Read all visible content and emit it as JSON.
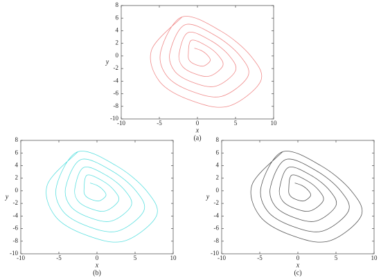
{
  "chart_data": [
    {
      "type": "line",
      "xlabel": "x",
      "ylabel": "y",
      "caption": "(a)",
      "xlim": [
        -10,
        10
      ],
      "xticks": [
        -10,
        -5,
        0,
        5,
        10
      ],
      "ylim": [
        -10,
        8
      ],
      "yticks": [
        -10,
        -8,
        -6,
        -4,
        -2,
        0,
        2,
        4,
        6,
        8
      ],
      "series": [
        {
          "color": "#f08a8a",
          "x": [
            -0.4,
            0.6,
            1.4,
            1.66,
            0.8,
            -0.2,
            -1,
            -1.2,
            -0.8,
            1.2,
            2.8,
            3.32,
            1.6,
            -0.4,
            -2,
            -2.4,
            -1.2,
            1.8,
            4.2,
            4.98,
            2.4,
            -0.6,
            -3,
            -3.6,
            -1.6,
            2.4,
            5.6,
            6.64,
            3.2,
            -0.8,
            -4,
            -4.8,
            -2,
            3,
            7,
            8.3,
            4,
            -1,
            -5,
            -6,
            -2
          ],
          "values": [
            1.24,
            0.8,
            0,
            -0.8,
            -1.6,
            -1.4,
            -0.8,
            0.2,
            2.48,
            1.6,
            0,
            -1.6,
            -3.2,
            -2.8,
            -1.6,
            0.4,
            3.72,
            2.4,
            0,
            -2.4,
            -4.8,
            -4.2,
            -2.4,
            0.6,
            4.96,
            3.2,
            0,
            -3.2,
            -6.4,
            -5.6,
            -3.2,
            0.8,
            6.2,
            4,
            0,
            -4,
            -8,
            -7,
            -4,
            1,
            6.2
          ]
        }
      ]
    },
    {
      "type": "line",
      "xlabel": "x",
      "ylabel": "y",
      "caption": "(b)",
      "xlim": [
        -10,
        10
      ],
      "xticks": [
        -10,
        -5,
        0,
        5,
        10
      ],
      "ylim": [
        -10,
        8
      ],
      "yticks": [
        -10,
        -8,
        -6,
        -4,
        -2,
        0,
        2,
        4,
        6,
        8
      ],
      "series": [
        {
          "color": "#5ce0e0",
          "x": [
            -0.9,
            0.1,
            0.9,
            1.16,
            0.3,
            -0.7,
            -1.5,
            -1.7,
            -1.3,
            0.7,
            2.3,
            2.82,
            1.1,
            -0.9,
            -2.5,
            -2.9,
            -1.7,
            1.3,
            3.7,
            4.48,
            1.9,
            -1.1,
            -3.5,
            -4.1,
            -2.1,
            1.9,
            5.1,
            6.14,
            2.7,
            -1.3,
            -4.5,
            -5.3,
            -2.5,
            2.5,
            6.5,
            7.8,
            3.5,
            -1.5,
            -5.5,
            -6.5,
            -2.5
          ],
          "values": [
            1.24,
            0.8,
            0,
            -0.8,
            -1.6,
            -1.4,
            -0.8,
            0.2,
            2.48,
            1.6,
            0,
            -1.6,
            -3.2,
            -2.8,
            -1.6,
            0.4,
            3.72,
            2.4,
            0,
            -2.4,
            -4.8,
            -4.2,
            -2.4,
            0.6,
            4.96,
            3.2,
            0,
            -3.2,
            -6.4,
            -5.6,
            -3.2,
            0.8,
            6.2,
            4,
            0,
            -4,
            -8,
            -7,
            -4,
            1,
            6.2
          ]
        }
      ]
    },
    {
      "type": "line",
      "xlabel": "x",
      "ylabel": "y",
      "caption": "(c)",
      "xlim": [
        -10,
        10
      ],
      "xticks": [
        -10,
        -5,
        0,
        5,
        10
      ],
      "ylim": [
        -10,
        8
      ],
      "yticks": [
        -10,
        -8,
        -6,
        -4,
        -2,
        0,
        2,
        4,
        6,
        8
      ],
      "series": [
        {
          "color": "#555555",
          "x": [
            -0.4,
            0.6,
            1.4,
            1.66,
            0.8,
            -0.2,
            -1,
            -1.2,
            -0.8,
            1.2,
            2.8,
            3.32,
            1.6,
            -0.4,
            -2,
            -2.4,
            -1.2,
            1.8,
            4.2,
            4.98,
            2.4,
            -0.6,
            -3,
            -3.6,
            -1.6,
            2.4,
            5.6,
            6.64,
            3.2,
            -0.8,
            -4,
            -4.8,
            -2,
            3,
            7,
            8.3,
            4,
            -1,
            -5,
            -6,
            -2
          ],
          "values": [
            1.24,
            0.8,
            0,
            -0.8,
            -1.6,
            -1.4,
            -0.8,
            0.2,
            2.48,
            1.6,
            0,
            -1.6,
            -3.2,
            -2.8,
            -1.6,
            0.4,
            3.72,
            2.4,
            0,
            -2.4,
            -4.8,
            -4.2,
            -2.4,
            0.6,
            4.96,
            3.2,
            0,
            -3.2,
            -6.4,
            -5.6,
            -3.2,
            0.8,
            6.2,
            4,
            0,
            -4,
            -8,
            -7,
            -4,
            1,
            6.2
          ]
        }
      ]
    }
  ]
}
